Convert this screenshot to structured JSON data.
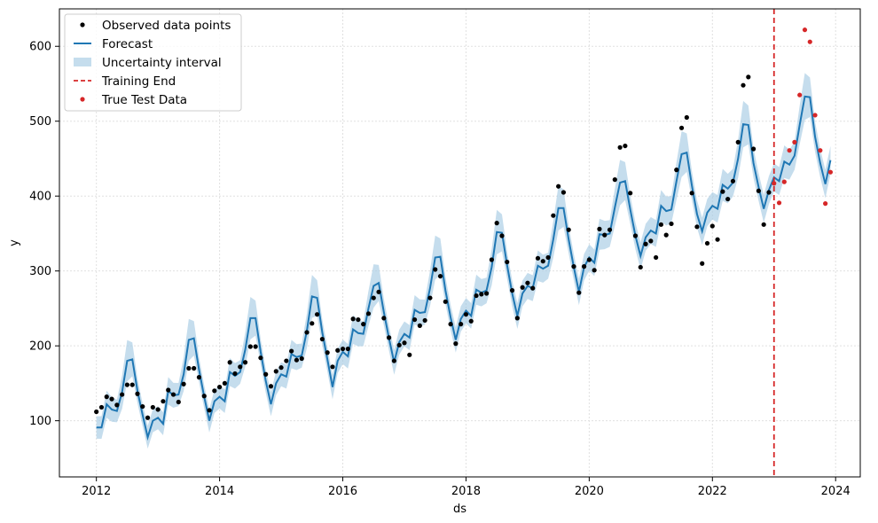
{
  "chart_data": {
    "type": "line",
    "xlabel": "ds",
    "ylabel": "y",
    "x_ticks": [
      "2012",
      "2014",
      "2016",
      "2018",
      "2020",
      "2022",
      "2024"
    ],
    "y_ticks": [
      100,
      200,
      300,
      400,
      500,
      600
    ],
    "xlim": [
      2011.4,
      2024.4
    ],
    "ylim": [
      25,
      650
    ],
    "grid": true,
    "legend_position": "top-left",
    "legend": [
      {
        "key": "observed",
        "label": "Observed data points"
      },
      {
        "key": "forecast",
        "label": "Forecast"
      },
      {
        "key": "interval",
        "label": "Uncertainty interval"
      },
      {
        "key": "train_end",
        "label": "Training End"
      },
      {
        "key": "test",
        "label": "True Test Data"
      }
    ],
    "colors": {
      "observed": "#000000",
      "forecast": "#1f77b4",
      "interval": "#a6cbe3",
      "train_end": "#d62728",
      "test": "#d62728"
    },
    "training_end_x": 2023.0,
    "seasonal_profile": [
      0,
      -8,
      12,
      5,
      0,
      28,
      50,
      30,
      5,
      -20,
      -40,
      -15
    ],
    "band_half_width": 15,
    "observed": {
      "start_year": 2012,
      "y": [
        112,
        118,
        132,
        129,
        121,
        135,
        148,
        148,
        136,
        119,
        104,
        118,
        115,
        126,
        141,
        135,
        125,
        149,
        170,
        170,
        158,
        133,
        114,
        140,
        145,
        150,
        178,
        163,
        172,
        178,
        199,
        199,
        184,
        162,
        146,
        166,
        171,
        180,
        193,
        181,
        183,
        218,
        230,
        242,
        209,
        191,
        172,
        194,
        196,
        196,
        236,
        235,
        229,
        243,
        264,
        272,
        237,
        211,
        180,
        201,
        204,
        188,
        235,
        227,
        234,
        264,
        302,
        293,
        259,
        229,
        203,
        229,
        242,
        233,
        267,
        269,
        270,
        315,
        364,
        347,
        312,
        274,
        237,
        278,
        284,
        277,
        317,
        313,
        318,
        374,
        413,
        405,
        355,
        306,
        271,
        306,
        315,
        301,
        356,
        348,
        355,
        422,
        465,
        467,
        404,
        347,
        305,
        336,
        340,
        318,
        362,
        348,
        363,
        435,
        491,
        505,
        404,
        359,
        310,
        337,
        360,
        342,
        406,
        396,
        420,
        472,
        548,
        559,
        463,
        407,
        362,
        405
      ]
    },
    "forecast": {
      "start_year": 2012,
      "y": [
        91,
        91,
        122,
        115,
        113,
        138,
        180,
        182,
        140,
        108,
        78,
        100,
        104,
        96,
        140,
        134,
        135,
        162,
        208,
        210,
        168,
        132,
        100,
        126,
        132,
        126,
        165,
        160,
        165,
        195,
        237,
        237,
        192,
        153,
        122,
        150,
        162,
        159,
        189,
        185,
        187,
        220,
        266,
        264,
        218,
        182,
        145,
        180,
        192,
        186,
        222,
        217,
        216,
        250,
        280,
        284,
        245,
        210,
        178,
        205,
        216,
        211,
        248,
        244,
        245,
        277,
        318,
        319,
        274,
        238,
        208,
        236,
        247,
        240,
        275,
        271,
        274,
        305,
        352,
        351,
        308,
        270,
        240,
        270,
        280,
        277,
        307,
        303,
        307,
        342,
        384,
        384,
        342,
        305,
        272,
        305,
        318,
        311,
        349,
        348,
        350,
        385,
        418,
        420,
        382,
        347,
        320,
        345,
        354,
        350,
        387,
        380,
        382,
        420,
        456,
        458,
        414,
        376,
        353,
        378,
        387,
        383,
        415,
        410,
        418,
        450,
        496,
        495,
        444,
        412,
        383,
        408,
        425,
        420,
        446,
        442,
        454,
        495,
        533,
        532,
        479,
        444,
        416,
        448
      ]
    },
    "test": {
      "start_year": 2023,
      "y": [
        417,
        391,
        419,
        461,
        472,
        535,
        622,
        606,
        508,
        461,
        390,
        432
      ]
    }
  }
}
